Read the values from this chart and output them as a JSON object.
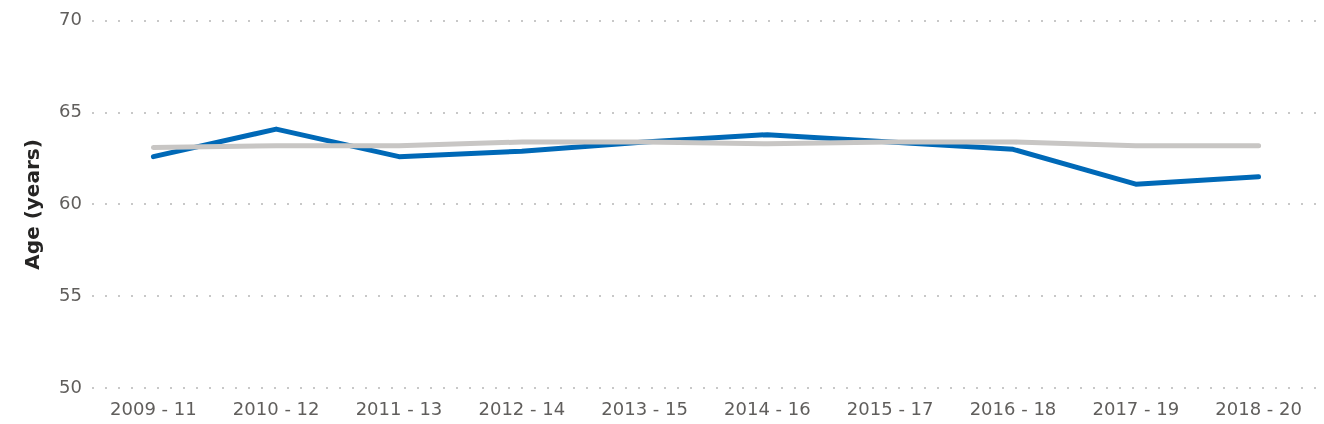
{
  "chart_data": {
    "type": "line",
    "ylabel": "Age (years)",
    "categories": [
      "2009 - 11",
      "2010 - 12",
      "2011 - 13",
      "2012 - 14",
      "2013 - 15",
      "2014 - 16",
      "2015 - 17",
      "2016 - 18",
      "2017 - 19",
      "2018 - 20"
    ],
    "series": [
      {
        "color": "#0069b7",
        "values": [
          62.6,
          64.1,
          62.6,
          62.9,
          63.4,
          63.8,
          63.4,
          63.0,
          61.1,
          61.5
        ]
      },
      {
        "color": "#c8c6c4",
        "values": [
          63.1,
          63.2,
          63.2,
          63.4,
          63.4,
          63.3,
          63.4,
          63.4,
          63.2,
          63.2
        ]
      }
    ],
    "ylim": [
      50,
      70
    ],
    "yticks": [
      50,
      55,
      60,
      65,
      70
    ],
    "grid": "y"
  }
}
